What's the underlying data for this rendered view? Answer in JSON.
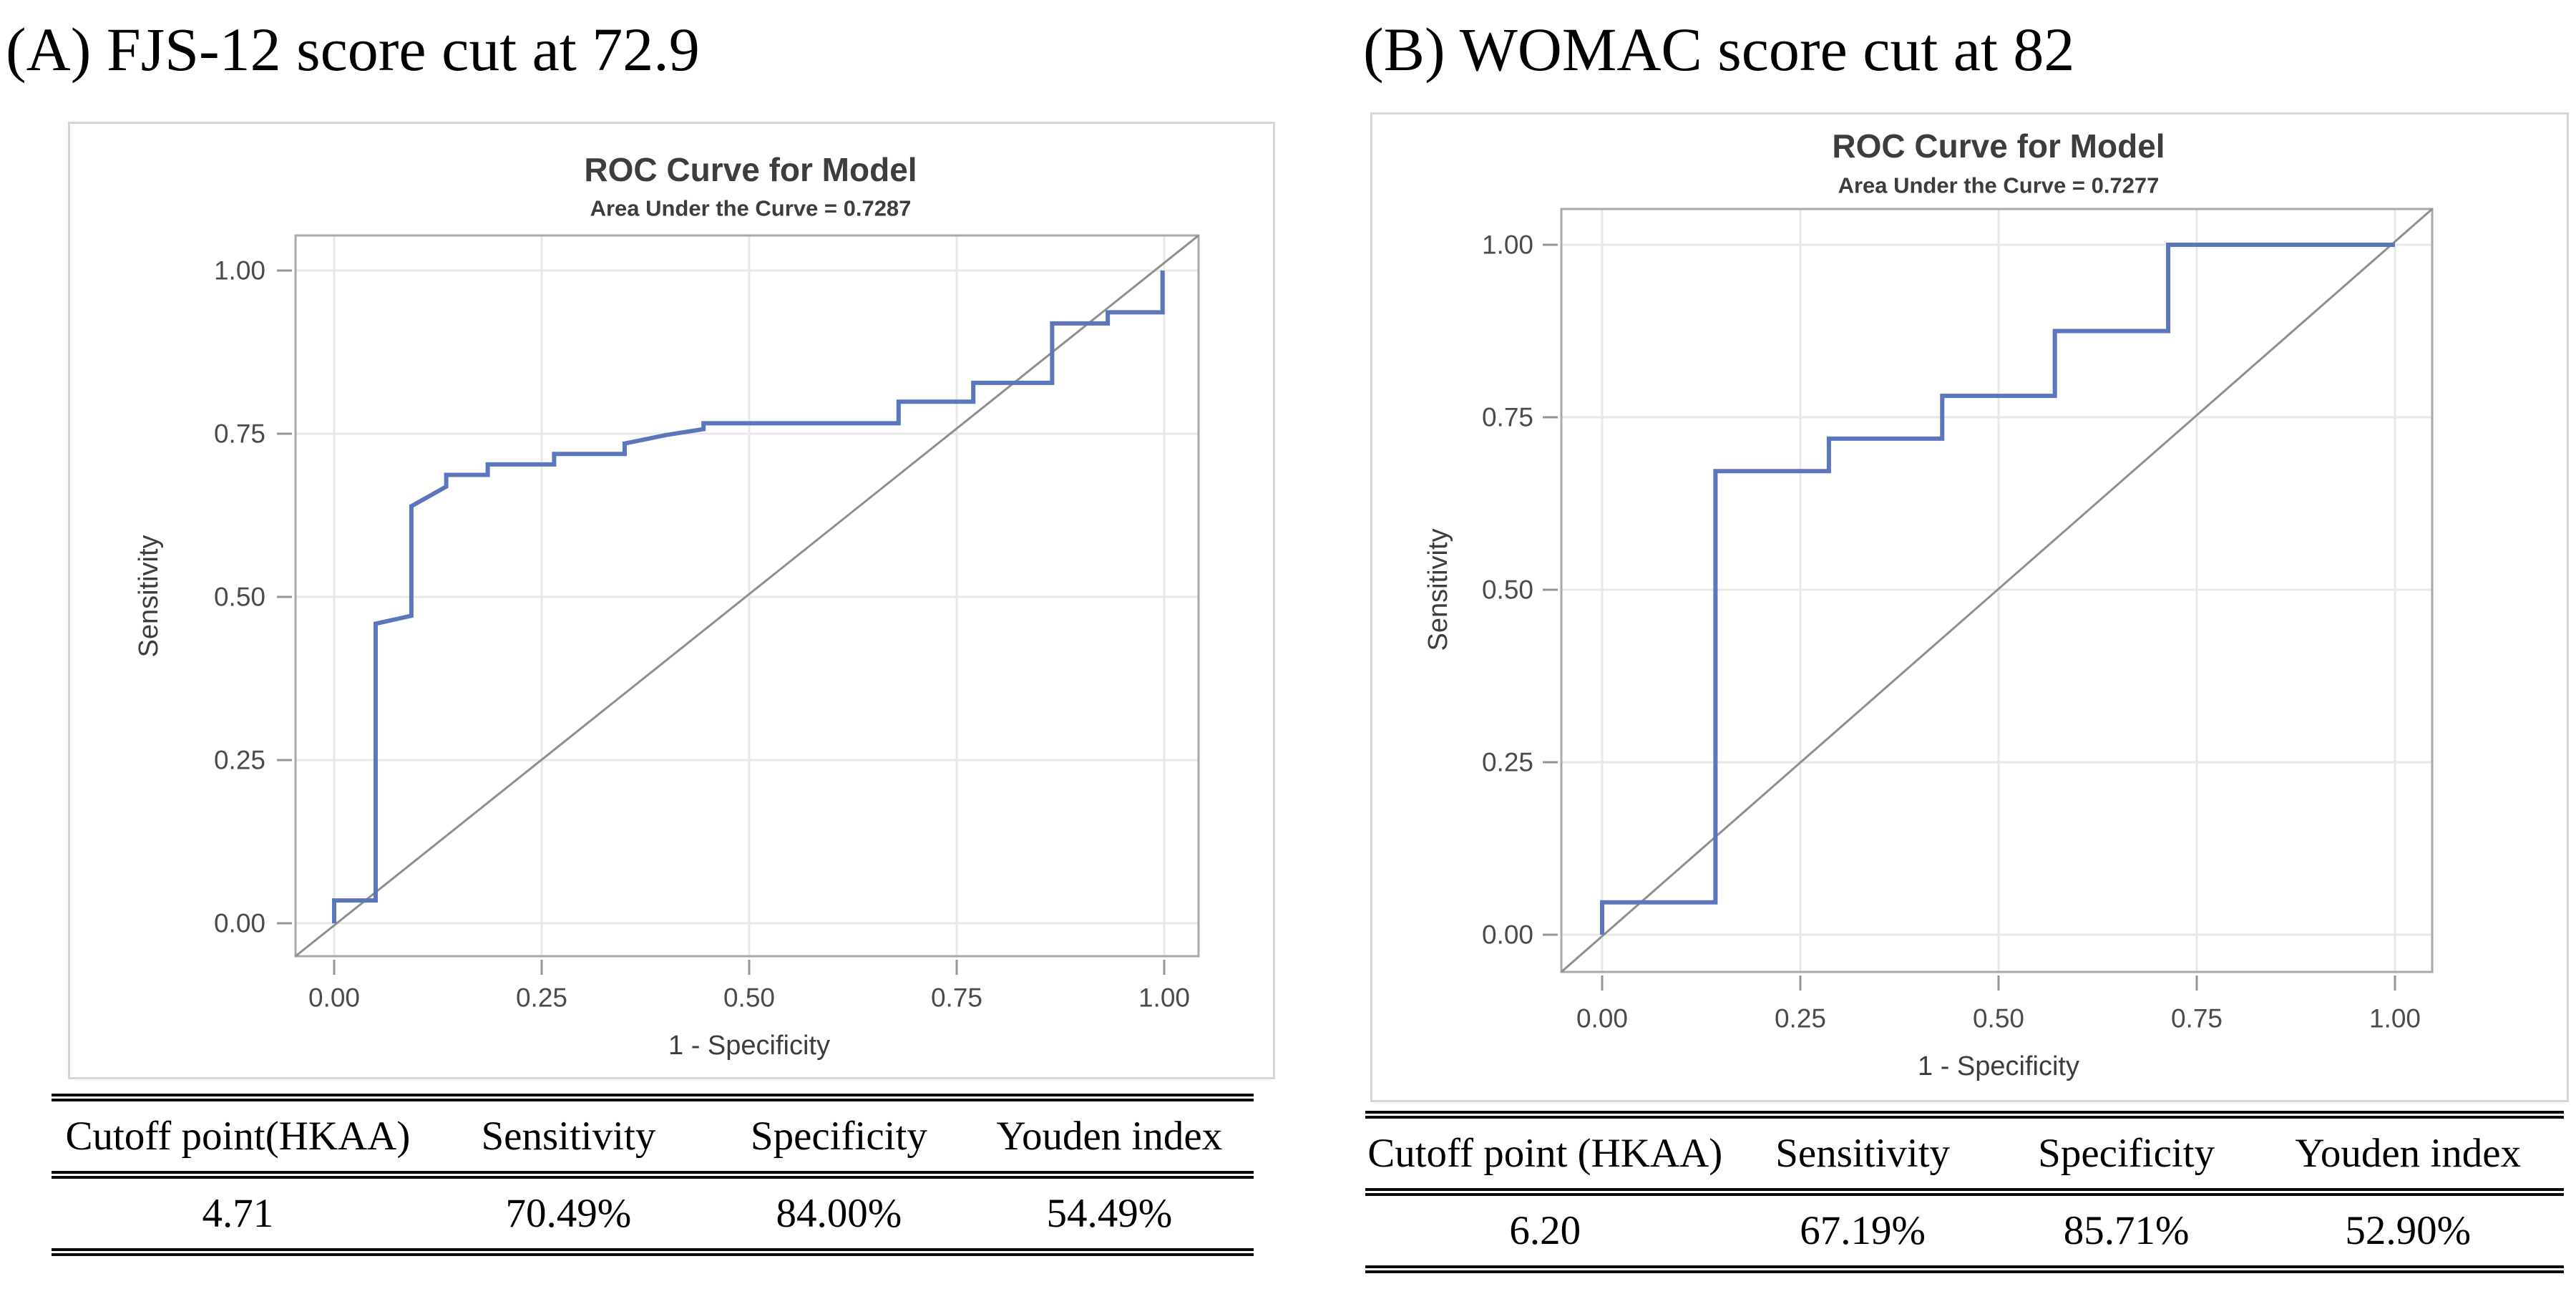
{
  "panels": [
    {
      "heading": "(A) FJS-12 score cut at 72.9",
      "chart_data": {
        "type": "line",
        "title": "ROC Curve for Model",
        "subtitle": "Area Under the Curve = 0.7287",
        "auc": 0.7287,
        "xlabel": "1 - Specificity",
        "ylabel": "Sensitivity",
        "xlim": [
          0,
          1
        ],
        "ylim": [
          0,
          1
        ],
        "xticks": [
          "0.00",
          "0.25",
          "0.50",
          "0.75",
          "1.00"
        ],
        "yticks": [
          "0.00",
          "0.25",
          "0.50",
          "0.75",
          "1.00"
        ],
        "grid": true,
        "legend_position": "none",
        "reference_diagonal": true,
        "series": [
          {
            "name": "ROC curve",
            "points": [
              [
                0,
                0
              ],
              [
                0,
                0.035
              ],
              [
                0.05,
                0.035
              ],
              [
                0.05,
                0.459
              ],
              [
                0.093,
                0.471
              ],
              [
                0.093,
                0.639
              ],
              [
                0.135,
                0.669
              ],
              [
                0.135,
                0.687
              ],
              [
                0.185,
                0.687
              ],
              [
                0.185,
                0.703
              ],
              [
                0.265,
                0.703
              ],
              [
                0.265,
                0.719
              ],
              [
                0.35,
                0.719
              ],
              [
                0.35,
                0.735
              ],
              [
                0.4,
                0.748
              ],
              [
                0.445,
                0.757
              ],
              [
                0.445,
                0.766
              ],
              [
                0.68,
                0.766
              ],
              [
                0.68,
                0.799
              ],
              [
                0.77,
                0.799
              ],
              [
                0.77,
                0.828
              ],
              [
                0.865,
                0.828
              ],
              [
                0.865,
                0.919
              ],
              [
                0.932,
                0.919
              ],
              [
                0.932,
                0.936
              ],
              [
                0.998,
                0.936
              ],
              [
                0.998,
                1.0
              ]
            ]
          }
        ]
      },
      "table": {
        "headers": [
          "Cutoff point(HKAA)",
          "Sensitivity",
          "Specificity",
          "Youden index"
        ],
        "rows": [
          [
            "4.71",
            "70.49%",
            "84.00%",
            "54.49%"
          ]
        ]
      }
    },
    {
      "heading": "(B) WOMAC score cut at 82",
      "chart_data": {
        "type": "line",
        "title": "ROC Curve for Model",
        "subtitle": "Area Under the Curve = 0.7277",
        "auc": 0.7277,
        "xlabel": "1 - Specificity",
        "ylabel": "Sensitivity",
        "xlim": [
          0,
          1
        ],
        "ylim": [
          0,
          1
        ],
        "xticks": [
          "0.00",
          "0.25",
          "0.50",
          "0.75",
          "1.00"
        ],
        "yticks": [
          "0.00",
          "0.25",
          "0.50",
          "0.75",
          "1.00"
        ],
        "grid": true,
        "legend_position": "none",
        "reference_diagonal": true,
        "series": [
          {
            "name": "ROC curve",
            "points": [
              [
                0,
                0
              ],
              [
                0,
                0.047
              ],
              [
                0.143,
                0.047
              ],
              [
                0.143,
                0.672
              ],
              [
                0.286,
                0.672
              ],
              [
                0.286,
                0.719
              ],
              [
                0.429,
                0.719
              ],
              [
                0.429,
                0.781
              ],
              [
                0.571,
                0.781
              ],
              [
                0.571,
                0.875
              ],
              [
                0.714,
                0.875
              ],
              [
                0.714,
                1.0
              ],
              [
                1.0,
                1.0
              ]
            ]
          }
        ]
      },
      "table": {
        "headers": [
          "Cutoff point (HKAA)",
          "Sensitivity",
          "Specificity",
          "Youden index"
        ],
        "rows": [
          [
            "6.20",
            "67.19%",
            "85.71%",
            "52.90%"
          ]
        ]
      }
    }
  ],
  "colors": {
    "curve": "#5b76bd",
    "frame": "#a9a9a9",
    "grid": "#e8e8e8",
    "diagonal": "#8f8f8f",
    "tick": "#949494",
    "chart_text": "#3d3d3d",
    "tick_text": "#4b4b4b",
    "panel_border": "#d6d6d6",
    "table_rule": "#0a0a0a",
    "heading_text": "#000000"
  }
}
